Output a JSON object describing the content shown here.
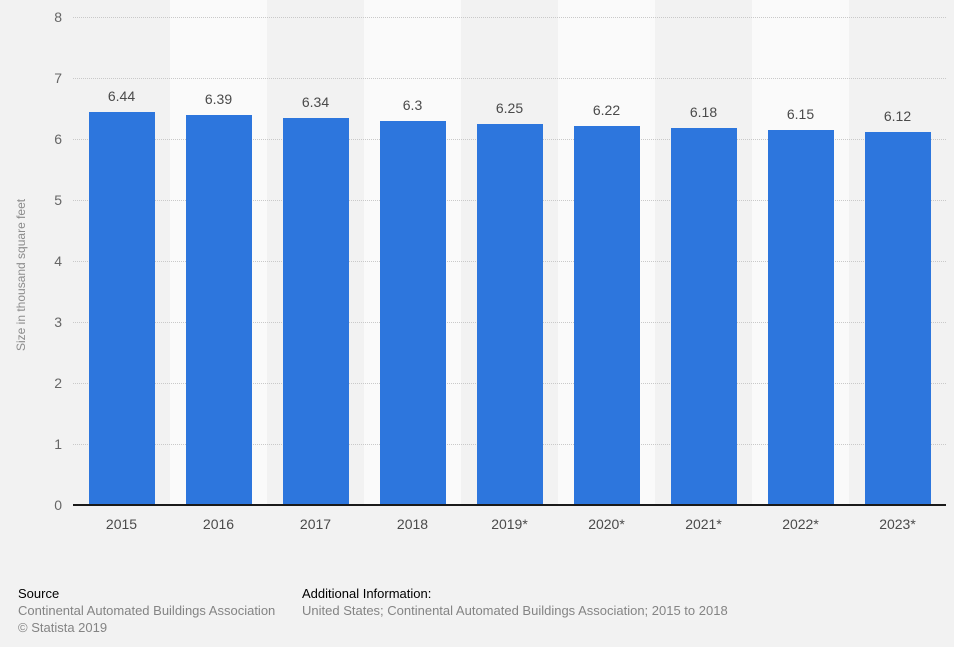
{
  "chart_data": {
    "type": "bar",
    "title": "",
    "categories": [
      "2015",
      "2016",
      "2017",
      "2018",
      "2019*",
      "2020*",
      "2021*",
      "2022*",
      "2023*"
    ],
    "values": [
      6.44,
      6.39,
      6.34,
      6.3,
      6.25,
      6.22,
      6.18,
      6.15,
      6.12
    ],
    "value_labels": [
      "6.44",
      "6.39",
      "6.34",
      "6.3",
      "6.25",
      "6.22",
      "6.18",
      "6.15",
      "6.12"
    ],
    "xlabel": "",
    "ylabel": "Size in thousand square feet",
    "ylim": [
      0,
      8
    ],
    "yticks": [
      0,
      1,
      2,
      3,
      4,
      5,
      6,
      7,
      8
    ],
    "grid": "horizontal-dotted",
    "legend": "none",
    "bar_color": "#2d76dd",
    "stripe_color": "#fafafa"
  },
  "footer": {
    "source_label": "Source",
    "source_value": "Continental Automated Buildings Association",
    "copyright": "© Statista 2019",
    "additional_label": "Additional Information:",
    "additional_value": "United States; Continental Automated Buildings Association; 2015 to 2018"
  },
  "colors": {
    "background": "#f2f2f2",
    "bar": "#2d76dd",
    "stripe": "#fafafa",
    "gridline": "#c9c9c9",
    "axis_line": "#1a1a1a",
    "tick_text": "#666666",
    "value_text": "#4a4a4a",
    "footer_muted": "#848484"
  }
}
